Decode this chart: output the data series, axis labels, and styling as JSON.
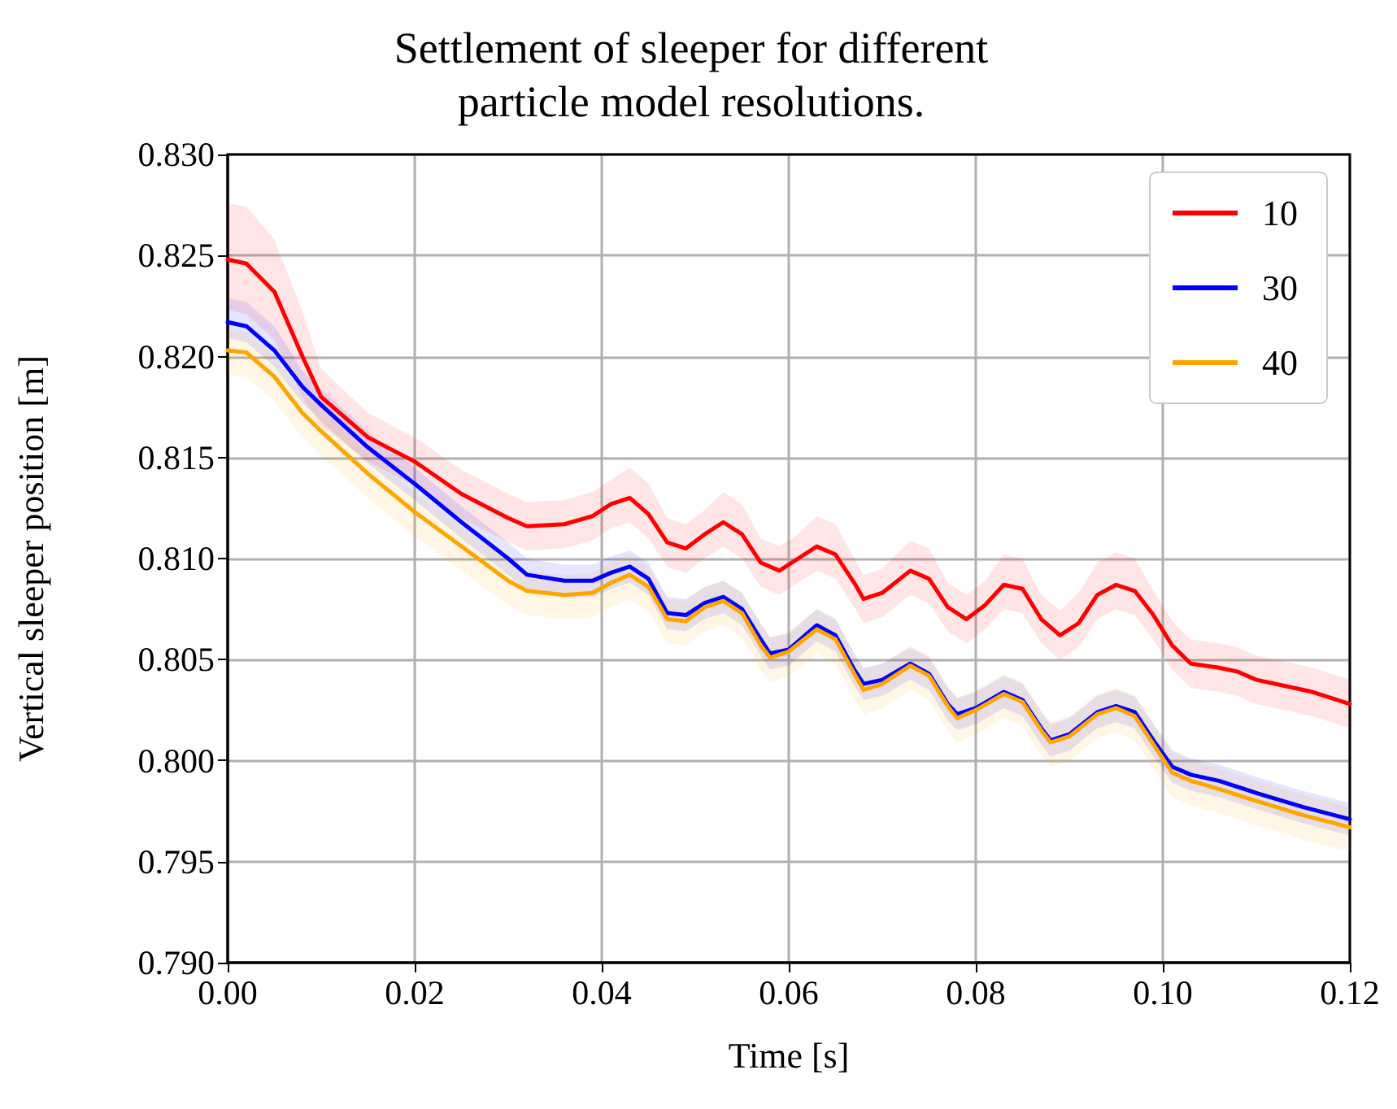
{
  "chart_data": {
    "type": "line",
    "title": "Settlement of sleeper for different\nparticle model resolutions.",
    "xlabel": "Time [s]",
    "ylabel": "Vertical sleeper position [m]",
    "xlim": [
      0,
      0.12
    ],
    "xticks": [
      {
        "value": 0,
        "label": "0.00"
      },
      {
        "value": 0.02,
        "label": "0.02"
      },
      {
        "value": 0.04,
        "label": "0.04"
      },
      {
        "value": 0.06,
        "label": "0.06"
      },
      {
        "value": 0.08,
        "label": "0.08"
      },
      {
        "value": 0.1,
        "label": "0.10"
      },
      {
        "value": 0.12,
        "label": "0.12"
      }
    ],
    "ylim": [
      0.79,
      0.83
    ],
    "yticks": [
      {
        "value": 0.79,
        "label": "0.790"
      },
      {
        "value": 0.795,
        "label": "0.795"
      },
      {
        "value": 0.8,
        "label": "0.800"
      },
      {
        "value": 0.805,
        "label": "0.805"
      },
      {
        "value": 0.81,
        "label": "0.810"
      },
      {
        "value": 0.815,
        "label": "0.815"
      },
      {
        "value": 0.82,
        "label": "0.820"
      },
      {
        "value": 0.825,
        "label": "0.825"
      },
      {
        "value": 0.83,
        "label": "0.830"
      }
    ],
    "grid": true,
    "legend": "top right",
    "marker": "none",
    "line_style": "solid",
    "series": [
      {
        "name": "10",
        "color": "#ff0000",
        "x": [
          0,
          0.002,
          0.005,
          0.008,
          0.01,
          0.015,
          0.02,
          0.025,
          0.03,
          0.032,
          0.036,
          0.039,
          0.041,
          0.043,
          0.045,
          0.047,
          0.049,
          0.051,
          0.053,
          0.055,
          0.057,
          0.059,
          0.061,
          0.063,
          0.065,
          0.067,
          0.068,
          0.07,
          0.073,
          0.075,
          0.077,
          0.079,
          0.081,
          0.083,
          0.085,
          0.087,
          0.089,
          0.091,
          0.093,
          0.095,
          0.097,
          0.099,
          0.101,
          0.103,
          0.106,
          0.108,
          0.11,
          0.113,
          0.116,
          0.12
        ],
        "values": [
          0.8248,
          0.8246,
          0.8232,
          0.82,
          0.818,
          0.816,
          0.8148,
          0.8132,
          0.812,
          0.8116,
          0.8117,
          0.8121,
          0.8127,
          0.813,
          0.8122,
          0.8108,
          0.8105,
          0.8112,
          0.8118,
          0.8112,
          0.8098,
          0.8094,
          0.81,
          0.8106,
          0.8102,
          0.8088,
          0.808,
          0.8083,
          0.8094,
          0.809,
          0.8076,
          0.807,
          0.8077,
          0.8087,
          0.8085,
          0.807,
          0.8062,
          0.8068,
          0.8082,
          0.8087,
          0.8084,
          0.8072,
          0.8057,
          0.8048,
          0.8046,
          0.8044,
          0.804,
          0.8037,
          0.8034,
          0.8028
        ],
        "upper": [
          0.8276,
          0.8274,
          0.8258,
          0.8222,
          0.8194,
          0.8172,
          0.816,
          0.8144,
          0.8132,
          0.8128,
          0.8129,
          0.8133,
          0.8139,
          0.8145,
          0.8137,
          0.812,
          0.8117,
          0.8124,
          0.8133,
          0.8127,
          0.811,
          0.8106,
          0.8112,
          0.8121,
          0.8117,
          0.81,
          0.8092,
          0.8095,
          0.8109,
          0.8105,
          0.8088,
          0.8082,
          0.8089,
          0.8102,
          0.81,
          0.8082,
          0.8074,
          0.8083,
          0.8098,
          0.8103,
          0.81,
          0.8084,
          0.8069,
          0.806,
          0.8058,
          0.8056,
          0.8052,
          0.8049,
          0.8046,
          0.804
        ],
        "lower": [
          0.8223,
          0.8221,
          0.8208,
          0.818,
          0.8166,
          0.8148,
          0.8136,
          0.812,
          0.8108,
          0.8104,
          0.8105,
          0.8109,
          0.8115,
          0.8118,
          0.811,
          0.8096,
          0.8093,
          0.81,
          0.8106,
          0.81,
          0.8086,
          0.8082,
          0.8088,
          0.8094,
          0.809,
          0.8076,
          0.8068,
          0.8071,
          0.8082,
          0.8078,
          0.8064,
          0.8058,
          0.8065,
          0.8075,
          0.8073,
          0.8058,
          0.805,
          0.8056,
          0.807,
          0.8075,
          0.8072,
          0.806,
          0.8045,
          0.8036,
          0.8034,
          0.8032,
          0.8028,
          0.8025,
          0.8022,
          0.8016
        ]
      },
      {
        "name": "30",
        "color": "#0000ff",
        "x": [
          0,
          0.002,
          0.005,
          0.008,
          0.01,
          0.015,
          0.02,
          0.025,
          0.03,
          0.032,
          0.036,
          0.039,
          0.041,
          0.043,
          0.045,
          0.047,
          0.049,
          0.051,
          0.053,
          0.055,
          0.057,
          0.058,
          0.06,
          0.063,
          0.065,
          0.067,
          0.068,
          0.07,
          0.073,
          0.075,
          0.077,
          0.078,
          0.08,
          0.083,
          0.085,
          0.087,
          0.088,
          0.09,
          0.093,
          0.095,
          0.097,
          0.099,
          0.101,
          0.103,
          0.106,
          0.11,
          0.115,
          0.12
        ],
        "values": [
          0.8217,
          0.8215,
          0.8203,
          0.8185,
          0.8176,
          0.8155,
          0.8137,
          0.8118,
          0.81,
          0.8092,
          0.8089,
          0.8089,
          0.8093,
          0.8096,
          0.809,
          0.8073,
          0.8072,
          0.8078,
          0.8081,
          0.8075,
          0.806,
          0.8053,
          0.8055,
          0.8067,
          0.8062,
          0.8045,
          0.8038,
          0.804,
          0.8048,
          0.8043,
          0.8028,
          0.8023,
          0.8026,
          0.8034,
          0.803,
          0.8016,
          0.801,
          0.8013,
          0.8024,
          0.8027,
          0.8024,
          0.801,
          0.7997,
          0.7993,
          0.799,
          0.7984,
          0.7977,
          0.7971
        ],
        "upper": [
          0.8229,
          0.8227,
          0.8215,
          0.8193,
          0.8184,
          0.8163,
          0.8145,
          0.8126,
          0.8108,
          0.81,
          0.8097,
          0.8097,
          0.8101,
          0.8104,
          0.8098,
          0.8081,
          0.808,
          0.8086,
          0.8089,
          0.8083,
          0.8068,
          0.8061,
          0.8063,
          0.8075,
          0.807,
          0.8053,
          0.8046,
          0.8048,
          0.8056,
          0.8051,
          0.8036,
          0.8031,
          0.8034,
          0.8042,
          0.8038,
          0.8024,
          0.8018,
          0.8021,
          0.8032,
          0.8035,
          0.8032,
          0.8018,
          0.8005,
          0.8001,
          0.7998,
          0.7992,
          0.7985,
          0.7979
        ],
        "lower": [
          0.8209,
          0.8207,
          0.8195,
          0.8177,
          0.8168,
          0.8147,
          0.8129,
          0.811,
          0.8092,
          0.8084,
          0.8081,
          0.8081,
          0.8085,
          0.8088,
          0.8082,
          0.8065,
          0.8064,
          0.807,
          0.8073,
          0.8067,
          0.8052,
          0.8045,
          0.8047,
          0.8059,
          0.8054,
          0.8037,
          0.803,
          0.8032,
          0.804,
          0.8035,
          0.802,
          0.8015,
          0.8018,
          0.8026,
          0.8022,
          0.8008,
          0.8002,
          0.8005,
          0.8016,
          0.8019,
          0.8016,
          0.8002,
          0.7989,
          0.7985,
          0.7982,
          0.7976,
          0.7969,
          0.7963
        ]
      },
      {
        "name": "40",
        "color": "#ffa500",
        "x": [
          0,
          0.002,
          0.005,
          0.008,
          0.01,
          0.015,
          0.02,
          0.025,
          0.03,
          0.032,
          0.036,
          0.039,
          0.041,
          0.043,
          0.045,
          0.047,
          0.049,
          0.051,
          0.053,
          0.055,
          0.057,
          0.058,
          0.06,
          0.063,
          0.065,
          0.067,
          0.068,
          0.07,
          0.073,
          0.075,
          0.077,
          0.078,
          0.08,
          0.083,
          0.085,
          0.087,
          0.088,
          0.09,
          0.093,
          0.095,
          0.097,
          0.099,
          0.101,
          0.103,
          0.106,
          0.11,
          0.115,
          0.12
        ],
        "values": [
          0.8203,
          0.8202,
          0.819,
          0.8172,
          0.8163,
          0.8142,
          0.8123,
          0.8106,
          0.8089,
          0.8084,
          0.8082,
          0.8083,
          0.8088,
          0.8092,
          0.8086,
          0.807,
          0.8069,
          0.8076,
          0.8079,
          0.8073,
          0.8057,
          0.8051,
          0.8054,
          0.8065,
          0.806,
          0.8043,
          0.8035,
          0.8038,
          0.8047,
          0.8042,
          0.8027,
          0.8021,
          0.8025,
          0.8033,
          0.8029,
          0.8015,
          0.8009,
          0.8012,
          0.8023,
          0.8026,
          0.8022,
          0.8008,
          0.7994,
          0.799,
          0.7986,
          0.798,
          0.7973,
          0.7967
        ],
        "upper": [
          0.8213,
          0.8212,
          0.82,
          0.8182,
          0.8173,
          0.8152,
          0.8133,
          0.8116,
          0.8099,
          0.8094,
          0.8092,
          0.8093,
          0.8098,
          0.8102,
          0.8096,
          0.808,
          0.8079,
          0.8086,
          0.8089,
          0.8083,
          0.8067,
          0.8061,
          0.8064,
          0.8075,
          0.807,
          0.8053,
          0.8045,
          0.8048,
          0.8057,
          0.8052,
          0.8037,
          0.8031,
          0.8035,
          0.8043,
          0.8039,
          0.8025,
          0.8019,
          0.8022,
          0.8033,
          0.8036,
          0.8032,
          0.8018,
          0.8004,
          0.8,
          0.7996,
          0.799,
          0.7983,
          0.7977
        ],
        "lower": [
          0.8191,
          0.819,
          0.8178,
          0.816,
          0.8151,
          0.813,
          0.8111,
          0.8094,
          0.8077,
          0.8072,
          0.807,
          0.8071,
          0.8076,
          0.808,
          0.8074,
          0.8058,
          0.8057,
          0.8064,
          0.8067,
          0.8061,
          0.8045,
          0.8039,
          0.8042,
          0.8053,
          0.8048,
          0.8031,
          0.8023,
          0.8026,
          0.8035,
          0.803,
          0.8015,
          0.8009,
          0.8013,
          0.8021,
          0.8017,
          0.8003,
          0.7997,
          0.8,
          0.8011,
          0.8014,
          0.801,
          0.7996,
          0.7982,
          0.7978,
          0.7974,
          0.7968,
          0.7961,
          0.7955
        ]
      }
    ]
  }
}
